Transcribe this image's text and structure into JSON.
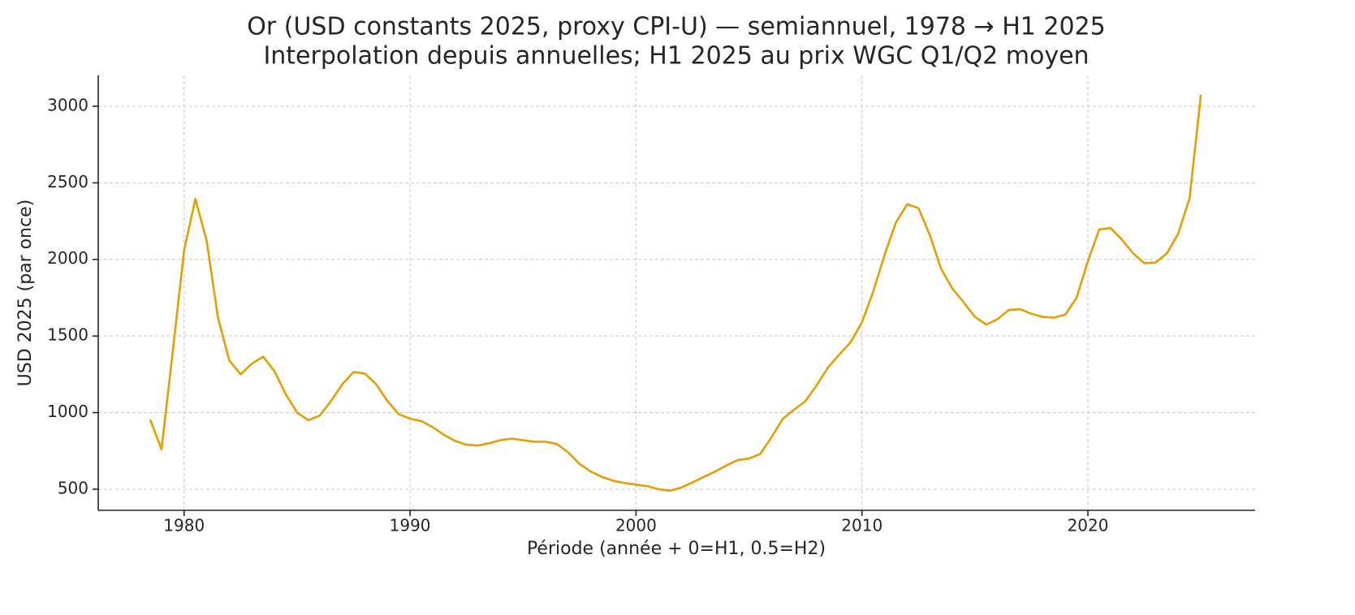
{
  "chart_data": {
    "type": "line",
    "title": "Or (USD constants 2025, proxy CPI-U) — semiannuel, 1978 → H1 2025",
    "subtitle": "Interpolation depuis annuelles; H1 2025 au prix WGC Q1/Q2 moyen",
    "x_label": "Période (année + 0=H1, 0.5=H2)",
    "y_label": "USD 2025 (par once)",
    "x": [
      1978.5,
      1979,
      1979.5,
      1980,
      1980.5,
      1981,
      1981.5,
      1982,
      1982.5,
      1983,
      1983.5,
      1984,
      1984.5,
      1985,
      1985.5,
      1986,
      1986.5,
      1987,
      1987.5,
      1988,
      1988.5,
      1989,
      1989.5,
      1990,
      1990.5,
      1991,
      1991.5,
      1992,
      1992.5,
      1993,
      1993.5,
      1994,
      1994.5,
      1995,
      1995.5,
      1996,
      1996.5,
      1997,
      1997.5,
      1998,
      1998.5,
      1999,
      1999.5,
      2000,
      2000.5,
      2001,
      2001.5,
      2002,
      2002.5,
      2003,
      2003.5,
      2004,
      2004.5,
      2005,
      2005.5,
      2006,
      2006.5,
      2007,
      2007.5,
      2008,
      2008.5,
      2009,
      2009.5,
      2010,
      2010.5,
      2011,
      2011.5,
      2012,
      2012.5,
      2013,
      2013.5,
      2014,
      2014.5,
      2015,
      2015.5,
      2016,
      2016.5,
      2017,
      2017.5,
      2018,
      2018.5,
      2019,
      2019.5,
      2020,
      2020.5,
      2021,
      2021.5,
      2022,
      2022.5,
      2023,
      2023.5,
      2024,
      2024.5,
      2025
    ],
    "series": [
      {
        "name": "Or",
        "color": "#e69f00",
        "values": [
          955,
          760,
          1400,
          2060,
          2395,
          2120,
          1620,
          1340,
          1250,
          1320,
          1365,
          1270,
          1120,
          1000,
          950,
          980,
          1075,
          1185,
          1265,
          1255,
          1185,
          1075,
          990,
          960,
          945,
          905,
          855,
          815,
          790,
          785,
          800,
          820,
          830,
          820,
          810,
          810,
          795,
          740,
          665,
          615,
          580,
          555,
          540,
          530,
          520,
          500,
          490,
          510,
          545,
          580,
          615,
          655,
          690,
          700,
          730,
          840,
          960,
          1020,
          1075,
          1180,
          1295,
          1380,
          1460,
          1590,
          1790,
          2030,
          2240,
          2360,
          2335,
          2160,
          1940,
          1810,
          1720,
          1625,
          1575,
          1610,
          1670,
          1675,
          1645,
          1625,
          1620,
          1640,
          1750,
          1990,
          2195,
          2205,
          2130,
          2040,
          1975,
          1980,
          2040,
          2170,
          2400,
          3075
        ]
      }
    ],
    "xlim": [
      1976.2,
      2027.4
    ],
    "ylim": [
      362,
      3201
    ],
    "xticks": [
      1980,
      1990,
      2000,
      2010,
      2020
    ],
    "yticks": [
      500,
      1000,
      1500,
      2000,
      2500,
      3000
    ],
    "grid": true
  }
}
